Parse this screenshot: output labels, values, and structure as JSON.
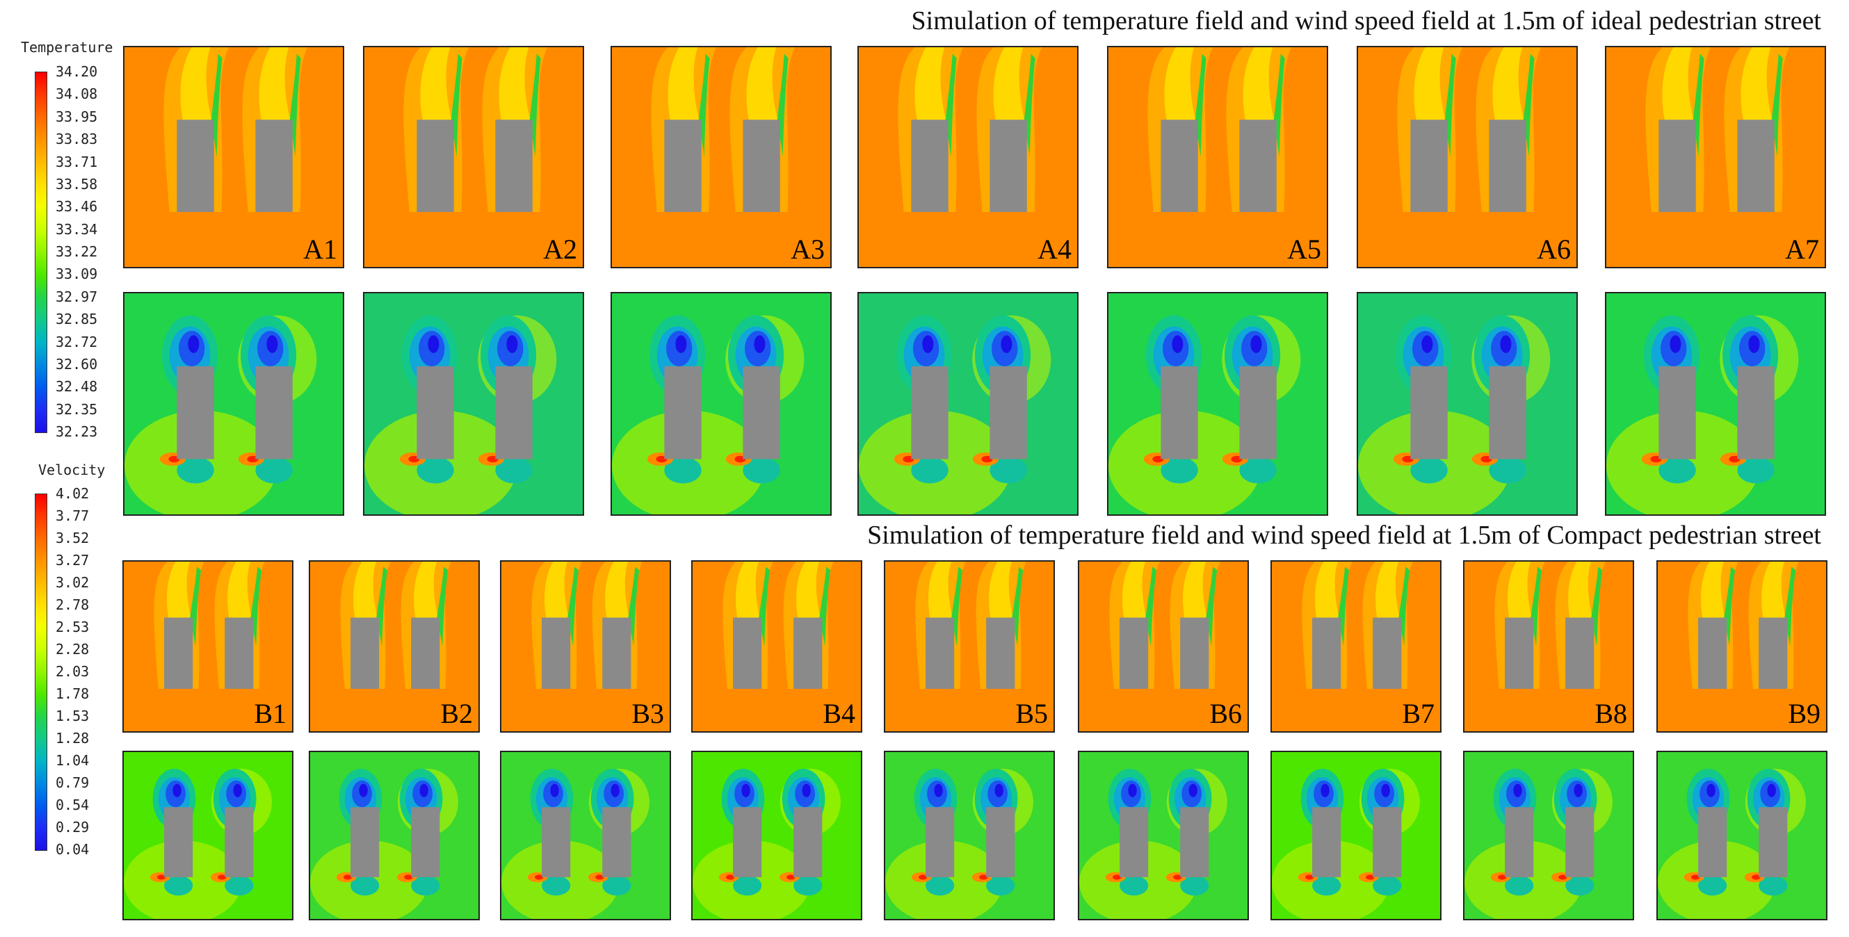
{
  "titles": {
    "ideal": "Simulation of temperature field and wind speed field at 1.5m of  ideal pedestrian street",
    "compact": "Simulation of temperature field and wind speed field at 1.5m of Compact pedestrian street"
  },
  "legends": {
    "temperature": {
      "title": "Temperature",
      "values": [
        "34.20",
        "34.08",
        "33.95",
        "33.83",
        "33.71",
        "33.58",
        "33.46",
        "33.34",
        "33.22",
        "33.09",
        "32.97",
        "32.85",
        "32.72",
        "32.60",
        "32.48",
        "32.35",
        "32.23"
      ]
    },
    "velocity": {
      "title": "Velocity",
      "values": [
        "4.02",
        "3.77",
        "3.52",
        "3.27",
        "3.02",
        "2.78",
        "2.53",
        "2.28",
        "2.03",
        "1.78",
        "1.53",
        "1.28",
        "1.04",
        "0.79",
        "0.54",
        "0.29",
        "0.04"
      ]
    }
  },
  "colors": {
    "temp_background": "#ff8a00",
    "building": "#8a8a8a",
    "velocity_background": "#22d44a"
  },
  "panels": {
    "A": [
      "A1",
      "A2",
      "A3",
      "A4",
      "A5",
      "A6",
      "A7"
    ],
    "B": [
      "B1",
      "B2",
      "B3",
      "B4",
      "B5",
      "B6",
      "B7",
      "B8",
      "B9"
    ]
  }
}
